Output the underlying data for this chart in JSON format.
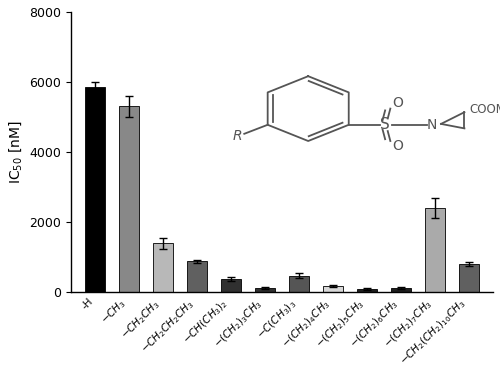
{
  "categories": [
    "-H",
    "$-CH_3$",
    "$-CH_2CH_3$",
    "$-CH_2CH_2CH_3$",
    "$-CH(CH_3)_2$",
    "$-(CH_2)_3CH_3$",
    "$-C(CH_3)_3$",
    "$-(CH_2)_4CH_3$",
    "$-(CH_2)_5CH_3$",
    "$-(CH_2)_6CH_3$",
    "$-(CH_2)_7CH_3$",
    "$-CH_2(CH_2)_{10}CH_3$"
  ],
  "values": [
    5850,
    5300,
    1380,
    870,
    370,
    100,
    460,
    175,
    75,
    100,
    2400,
    790
  ],
  "errors": [
    160,
    300,
    160,
    50,
    50,
    30,
    70,
    30,
    20,
    25,
    280,
    50
  ],
  "bar_colors": [
    "#000000",
    "#888888",
    "#b8b8b8",
    "#606060",
    "#303030",
    "#303030",
    "#555555",
    "#d8d8d8",
    "#202020",
    "#202020",
    "#aaaaaa",
    "#606060"
  ],
  "ylabel": "IC$_{50}$ [nM]",
  "ylim": [
    0,
    8000
  ],
  "yticks": [
    0,
    2000,
    4000,
    6000,
    8000
  ],
  "bar_width": 0.6,
  "capsize": 3,
  "struct_color": "#555555"
}
